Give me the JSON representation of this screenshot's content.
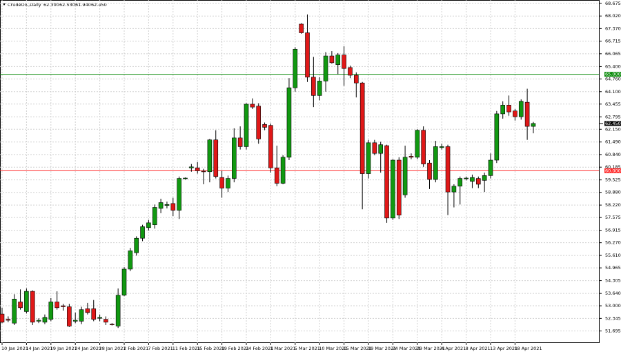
{
  "chart_data": {
    "type": "candlestick",
    "title": "CrudeOIL,Daily",
    "header_values": [
      {
        "value": 62.3,
        "label": "62.300"
      },
      {
        "value": 62.53,
        "label": "62.530"
      },
      {
        "value": 61.94,
        "label": "61.940"
      },
      {
        "value": 62.45,
        "label": "62.450"
      }
    ],
    "categories": [
      "10 Jan 2021",
      null,
      null,
      null,
      "14 Jan 2021",
      null,
      null,
      null,
      "19 Jan 2021",
      null,
      null,
      null,
      "24 Jan 2021",
      null,
      null,
      null,
      "28 Jan 2021",
      null,
      null,
      null,
      "2 Feb 2021",
      null,
      null,
      null,
      "7 Feb 2021",
      null,
      null,
      null,
      "11 Feb 2021",
      null,
      null,
      null,
      "15 Feb 2021",
      null,
      null,
      null,
      "19 Feb 2021",
      null,
      null,
      null,
      "24 Feb 2021",
      null,
      null,
      null,
      "1 Mar 2021",
      null,
      null,
      null,
      "5 Mar 2021",
      null,
      null,
      null,
      "10 Mar 2021",
      null,
      null,
      null,
      "15 Mar 2021",
      null,
      null,
      null,
      "19 Mar 2021",
      null,
      null,
      null,
      "24 Mar 2021",
      null,
      null,
      null,
      "29 Mar 2021",
      null,
      null,
      null,
      "4 Apr 2021",
      null,
      null,
      null,
      "8 Apr 2021",
      null,
      null,
      null,
      "13 Apr 2021",
      null,
      null,
      null,
      "18 Apr 2021",
      null,
      null,
      null
    ],
    "open": [
      52.57,
      52.3,
      52.1,
      53.2,
      52.7,
      53.75,
      52.2,
      52.15,
      52.3,
      53.2,
      53.0,
      52.95,
      52.2,
      52.2,
      52.85,
      52.85,
      52.35,
      52.3,
      52.05,
      51.95,
      53.55,
      54.9,
      55.75,
      56.5,
      57.05,
      57.2,
      58.05,
      58.2,
      58.3,
      57.95,
      59.6,
      60.15,
      60.15,
      59.98,
      59.95,
      61.6,
      59.65,
      59.1,
      59.6,
      61.7,
      61.25,
      63.45,
      63.35,
      62.4,
      62.35,
      60.15,
      59.35,
      60.7,
      64.3,
      67.6,
      67.15,
      64.85,
      63.9,
      64.65,
      65.95,
      65.5,
      66.0,
      65.35,
      64.95,
      64.55,
      59.85,
      61.45,
      60.9,
      61.3,
      57.55,
      60.55,
      58.75,
      60.75,
      60.7,
      62.1,
      60.4,
      59.55,
      61.2,
      61.25,
      58.9,
      59.2,
      59.6,
      59.45,
      59.6,
      59.5,
      59.75,
      60.55,
      62.95,
      63.4,
      63.1,
      62.8,
      63.55,
      62.3
    ],
    "high": [
      52.9,
      52.45,
      53.6,
      53.85,
      53.9,
      53.8,
      52.35,
      52.55,
      53.4,
      53.75,
      53.1,
      53.1,
      52.65,
      52.95,
      53.15,
      53.3,
      52.55,
      52.45,
      52.1,
      53.9,
      55.0,
      56.0,
      56.6,
      57.2,
      57.45,
      58.25,
      58.55,
      58.4,
      58.6,
      59.7,
      59.65,
      60.35,
      60.45,
      60.1,
      61.65,
      62.1,
      60.0,
      59.75,
      62.2,
      62.3,
      63.5,
      63.75,
      63.5,
      62.5,
      62.45,
      61.3,
      60.8,
      64.8,
      66.4,
      67.65,
      68.1,
      65.9,
      64.85,
      66.15,
      66.2,
      66.1,
      66.45,
      65.45,
      65.1,
      64.6,
      61.6,
      61.6,
      61.5,
      61.35,
      60.6,
      60.7,
      61.3,
      60.9,
      62.15,
      62.3,
      60.55,
      61.55,
      61.4,
      61.35,
      59.3,
      59.7,
      59.7,
      59.8,
      59.7,
      59.9,
      60.9,
      63.1,
      63.6,
      63.9,
      63.2,
      63.7,
      64.25,
      62.53
    ],
    "low": [
      52.1,
      52.15,
      52.0,
      52.8,
      52.6,
      52.0,
      52.1,
      52.05,
      52.2,
      52.8,
      52.75,
      51.9,
      52.1,
      52.05,
      52.55,
      52.2,
      52.2,
      52.0,
      51.98,
      51.85,
      53.5,
      54.8,
      55.6,
      56.35,
      56.9,
      57.0,
      57.8,
      58.05,
      57.65,
      57.5,
      59.55,
      59.95,
      59.85,
      59.3,
      59.4,
      59.6,
      58.6,
      58.9,
      59.4,
      61.1,
      61.1,
      63.2,
      61.4,
      62.1,
      59.9,
      59.2,
      59.3,
      60.55,
      64.1,
      67.1,
      64.6,
      63.3,
      63.65,
      64.1,
      65.55,
      65.0,
      64.4,
      64.8,
      63.8,
      58.0,
      59.6,
      60.8,
      59.9,
      57.3,
      57.45,
      57.5,
      58.6,
      60.6,
      60.6,
      60.2,
      59.05,
      59.4,
      61.1,
      57.7,
      58.1,
      58.25,
      59.5,
      59.1,
      59.1,
      58.9,
      59.6,
      60.4,
      62.7,
      62.85,
      62.6,
      62.65,
      61.6,
      61.94
    ],
    "close": [
      52.15,
      52.25,
      53.35,
      52.9,
      53.75,
      52.15,
      52.25,
      52.4,
      53.2,
      52.9,
      52.95,
      51.95,
      52.25,
      52.8,
      52.65,
      52.3,
      52.4,
      52.15,
      52.03,
      53.55,
      54.9,
      55.85,
      56.5,
      57.1,
      57.3,
      58.1,
      58.35,
      58.25,
      57.95,
      59.6,
      59.62,
      60.2,
      60.0,
      59.95,
      61.6,
      59.7,
      59.1,
      59.6,
      61.7,
      61.25,
      63.45,
      63.3,
      61.65,
      62.25,
      60.15,
      59.35,
      60.7,
      64.3,
      66.3,
      67.15,
      64.85,
      63.9,
      64.65,
      65.95,
      65.6,
      66.0,
      65.3,
      64.95,
      64.55,
      59.85,
      61.45,
      60.9,
      61.35,
      57.55,
      60.55,
      57.7,
      60.7,
      60.7,
      62.1,
      60.35,
      59.55,
      61.25,
      61.25,
      58.9,
      59.2,
      59.6,
      59.62,
      59.65,
      59.3,
      59.75,
      60.55,
      62.95,
      63.4,
      63.05,
      62.8,
      63.6,
      62.3,
      62.45
    ],
    "up_color": "#119911",
    "down_color": "#e01818",
    "ylim": [
      51.07,
      68.85
    ],
    "yticks": [
      68.675,
      {
        "value": 68.02,
        "label": "68.020"
      },
      {
        "value": 67.37,
        "label": "67.370"
      },
      66.715,
      66.065,
      {
        "value": 65.4,
        "label": "65.400"
      },
      {
        "value": 64.76,
        "label": "64.760"
      },
      {
        "value": 64.1,
        "label": "64.100"
      },
      63.455,
      62.795,
      {
        "value": 62.15,
        "label": "62.150"
      },
      {
        "value": 61.49,
        "label": "61.490"
      },
      {
        "value": 60.84,
        "label": "60.840"
      },
      60.185,
      59.525,
      {
        "value": 58.88,
        "label": "58.880"
      },
      {
        "value": 58.22,
        "label": "58.220"
      },
      57.575,
      56.915,
      {
        "value": 56.27,
        "label": "56.270"
      },
      {
        "value": 55.61,
        "label": "55.610"
      },
      54.965,
      54.305,
      {
        "value": 53.64,
        "label": "53.640"
      },
      {
        "value": 53,
        "label": "53.000"
      },
      52.345,
      51.695
    ],
    "levels": [
      {
        "value": 65,
        "label": "65.000",
        "color": "#0a8a0a"
      },
      {
        "value": 60,
        "label": "60.000",
        "color": "#ff2a2a"
      }
    ],
    "last_price": {
      "value": 62.45,
      "label": "62.450"
    },
    "grid": true
  }
}
